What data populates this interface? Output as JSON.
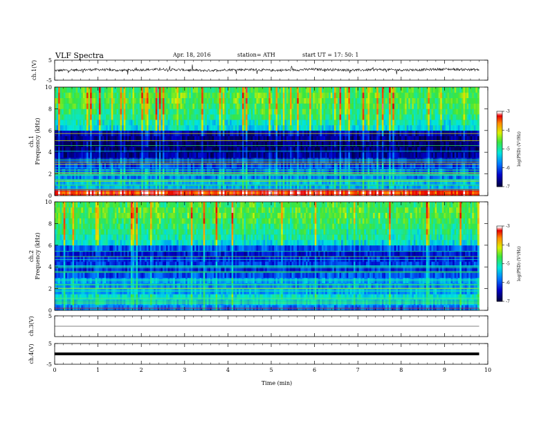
{
  "header": {
    "title": "VLF  Spectra",
    "date": "Apr. 18, 2016",
    "station": "station= ATH",
    "start": "start  UT  =   17: 50: 1"
  },
  "xaxis": {
    "label": "Time  (min)",
    "range": [
      0,
      10
    ],
    "ticks": [
      "0",
      "1",
      "2",
      "3",
      "4",
      "5",
      "6",
      "7",
      "8",
      "9",
      "10"
    ]
  },
  "colorbar": {
    "label": "log(PSD) (V²/Hz)",
    "ticks": [
      "-3",
      "-4",
      "-5",
      "-6",
      "-7"
    ],
    "range": [
      -7,
      -3
    ]
  },
  "chart_data": [
    {
      "type": "line",
      "id": "ch1-waveform",
      "ylabel": "ch.1(V)",
      "ylim": [
        -5,
        5
      ],
      "yticks": [
        "5",
        "-5"
      ],
      "x": [
        0.0,
        0.5,
        1.0,
        1.5,
        2.0,
        2.5,
        3.0,
        3.5,
        4.0,
        4.5,
        5.0,
        5.5,
        6.0,
        6.5,
        7.0,
        7.5,
        8.0,
        8.5,
        9.0,
        9.5,
        9.8
      ],
      "y": [
        -0.2,
        0.1,
        0.3,
        -0.1,
        0.2,
        0.4,
        0.1,
        -0.2,
        0.2,
        0.3,
        -0.1,
        0.1,
        0.4,
        0.2,
        0.0,
        0.3,
        0.1,
        0.2,
        0.5,
        0.3,
        0.2
      ]
    },
    {
      "type": "heatmap",
      "id": "ch1-spectrogram",
      "ylabel_channel": "ch.1",
      "ylabel": "Frequency  (kHz)",
      "ylim": [
        0,
        10
      ],
      "yticks": [
        "0",
        "2",
        "4",
        "6",
        "8",
        "10"
      ],
      "xlim": [
        0,
        9.8
      ],
      "freq_kHz": [
        0.25,
        0.75,
        1.25,
        1.75,
        2.25,
        2.75,
        3.25,
        3.75,
        4.25,
        4.75,
        5.25,
        5.75,
        6.25,
        6.75,
        7.25,
        7.75,
        8.25,
        8.75,
        9.25,
        9.75
      ],
      "mean_log_psd": [
        -3.4,
        -5.6,
        -5.5,
        -5.8,
        -5.9,
        -6.1,
        -6.3,
        -6.6,
        -6.8,
        -6.8,
        -6.7,
        -6.5,
        -5.3,
        -5.1,
        -4.9,
        -4.8,
        -4.7,
        -4.6,
        -4.6,
        -4.7
      ]
    },
    {
      "type": "heatmap",
      "id": "ch2-spectrogram",
      "ylabel_channel": "ch.2",
      "ylabel": "Frequency  (kHz)",
      "ylim": [
        0,
        10
      ],
      "yticks": [
        "0",
        "2",
        "4",
        "6",
        "8",
        "10"
      ],
      "xlim": [
        0,
        9.8
      ],
      "freq_kHz": [
        0.25,
        0.75,
        1.25,
        1.75,
        2.25,
        2.75,
        3.25,
        3.75,
        4.25,
        4.75,
        5.25,
        5.75,
        6.25,
        6.75,
        7.25,
        7.75,
        8.25,
        8.75,
        9.25,
        9.75
      ],
      "mean_log_psd": [
        -5.8,
        -5.4,
        -5.2,
        -5.6,
        -5.7,
        -5.6,
        -6.0,
        -6.2,
        -6.1,
        -6.2,
        -6.3,
        -6.0,
        -5.2,
        -5.0,
        -4.9,
        -4.8,
        -4.7,
        -4.6,
        -4.6,
        -4.7
      ]
    },
    {
      "type": "line",
      "id": "ch3-waveform",
      "ylabel": "ch.3(V)",
      "ylim": [
        -5,
        5
      ],
      "yticks": [
        "5"
      ],
      "x": [
        0.0,
        9.8
      ],
      "y": [
        0.0,
        0.0
      ]
    },
    {
      "type": "line",
      "id": "ch4-waveform",
      "ylabel": "ch.4(V)",
      "ylim": [
        -5,
        5
      ],
      "yticks": [
        "5",
        "-5"
      ],
      "x": [
        0.0,
        9.8
      ],
      "y": [
        0.0,
        0.0
      ]
    }
  ]
}
